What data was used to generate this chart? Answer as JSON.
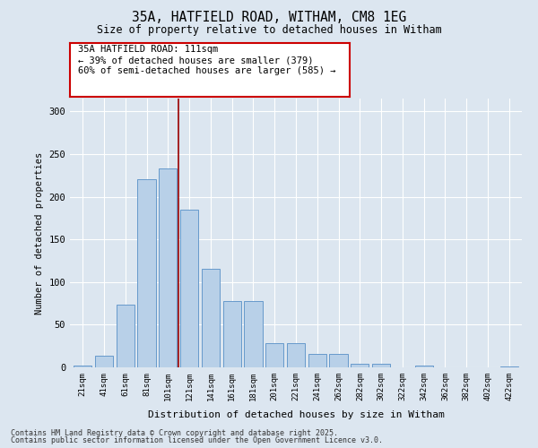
{
  "title1": "35A, HATFIELD ROAD, WITHAM, CM8 1EG",
  "title2": "Size of property relative to detached houses in Witham",
  "xlabel": "Distribution of detached houses by size in Witham",
  "ylabel": "Number of detached properties",
  "categories": [
    "21sqm",
    "41sqm",
    "61sqm",
    "81sqm",
    "101sqm",
    "121sqm",
    "141sqm",
    "161sqm",
    "181sqm",
    "201sqm",
    "221sqm",
    "241sqm",
    "262sqm",
    "282sqm",
    "302sqm",
    "322sqm",
    "342sqm",
    "362sqm",
    "382sqm",
    "402sqm",
    "422sqm"
  ],
  "values": [
    2,
    14,
    73,
    220,
    233,
    185,
    115,
    78,
    78,
    28,
    28,
    16,
    16,
    4,
    4,
    0,
    2,
    0,
    0,
    0,
    1
  ],
  "bar_color": "#b8d0e8",
  "bar_edge_color": "#6699cc",
  "vline_x_index": 5,
  "vline_color": "#990000",
  "annotation_text": "35A HATFIELD ROAD: 111sqm\n← 39% of detached houses are smaller (379)\n60% of semi-detached houses are larger (585) →",
  "annotation_box_color": "#ffffff",
  "annotation_box_edge": "#cc0000",
  "bg_color": "#dce6f0",
  "grid_color": "#ffffff",
  "footer1": "Contains HM Land Registry data © Crown copyright and database right 2025.",
  "footer2": "Contains public sector information licensed under the Open Government Licence v3.0.",
  "ylim": [
    0,
    315
  ],
  "yticks": [
    0,
    50,
    100,
    150,
    200,
    250,
    300
  ]
}
